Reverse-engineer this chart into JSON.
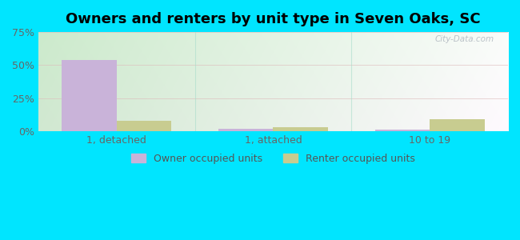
{
  "title": "Owners and renters by unit type in Seven Oaks, SC",
  "categories": [
    "1, detached",
    "1, attached",
    "10 to 19"
  ],
  "owner_values": [
    54.0,
    2.0,
    1.5
  ],
  "renter_values": [
    8.0,
    3.0,
    9.0
  ],
  "owner_color": "#c9b3d9",
  "renter_color": "#c8cc90",
  "ylim": [
    0,
    75
  ],
  "yticks": [
    0,
    25,
    50,
    75
  ],
  "ytick_labels": [
    "0%",
    "25%",
    "50%",
    "75%"
  ],
  "background_color": "#00e5ff",
  "legend_owner": "Owner occupied units",
  "legend_renter": "Renter occupied units",
  "bar_width": 0.35,
  "title_fontsize": 13,
  "tick_fontsize": 9,
  "legend_fontsize": 9,
  "watermark": "City-Data.com"
}
